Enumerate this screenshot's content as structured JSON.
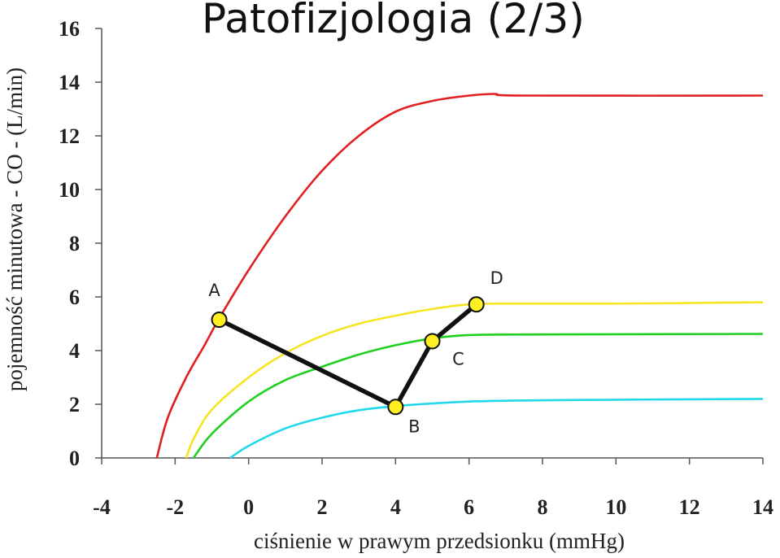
{
  "chart_data": {
    "type": "line",
    "title": "Patofizjologia (2/3)",
    "xlabel": "ciśnienie w prawym przedsionku (mmHg)",
    "ylabel": "pojemność minutowa - CO - (L/min)",
    "xlim": [
      -4,
      14
    ],
    "ylim": [
      0,
      16
    ],
    "x_ticks": [
      "-4",
      "-2",
      "0",
      "2",
      "4",
      "6",
      "8",
      "10",
      "12",
      "14"
    ],
    "y_ticks": [
      "0",
      "2",
      "4",
      "6",
      "8",
      "10",
      "12",
      "14",
      "16"
    ],
    "grid": false,
    "series": [
      {
        "color": "#e02020",
        "points": [
          [
            -2.5,
            0
          ],
          [
            -2.2,
            1.5
          ],
          [
            -1.7,
            3.0
          ],
          [
            -1.2,
            4.2
          ],
          [
            -0.8,
            5.2
          ],
          [
            0,
            7.0
          ],
          [
            1,
            9.0
          ],
          [
            2,
            10.7
          ],
          [
            3,
            12.0
          ],
          [
            4,
            12.9
          ],
          [
            5,
            13.3
          ],
          [
            6,
            13.5
          ],
          [
            6.7,
            13.56
          ],
          [
            7.5,
            13.5
          ],
          [
            14,
            13.5
          ]
        ]
      },
      {
        "color": "#f5e521",
        "points": [
          [
            -1.7,
            0
          ],
          [
            -1.5,
            0.7
          ],
          [
            -1,
            1.8
          ],
          [
            0,
            3.0
          ],
          [
            1,
            3.9
          ],
          [
            2,
            4.55
          ],
          [
            3,
            5.0
          ],
          [
            4,
            5.3
          ],
          [
            5,
            5.55
          ],
          [
            6,
            5.72
          ],
          [
            7,
            5.75
          ],
          [
            10,
            5.75
          ],
          [
            14,
            5.8
          ]
        ]
      },
      {
        "color": "#20d020",
        "points": [
          [
            -1.5,
            0
          ],
          [
            -1,
            0.9
          ],
          [
            0,
            2.1
          ],
          [
            1,
            2.9
          ],
          [
            2,
            3.4
          ],
          [
            3,
            3.85
          ],
          [
            4,
            4.2
          ],
          [
            5,
            4.45
          ],
          [
            6,
            4.58
          ],
          [
            8,
            4.6
          ],
          [
            14,
            4.62
          ]
        ]
      },
      {
        "color": "#20d8ec",
        "points": [
          [
            -0.5,
            0
          ],
          [
            0,
            0.45
          ],
          [
            1,
            1.1
          ],
          [
            2,
            1.5
          ],
          [
            3,
            1.78
          ],
          [
            4,
            1.93
          ],
          [
            5,
            2.03
          ],
          [
            6,
            2.1
          ],
          [
            8,
            2.15
          ],
          [
            10,
            2.17
          ],
          [
            14,
            2.2
          ]
        ]
      }
    ],
    "path": {
      "color": "#111111",
      "points": [
        {
          "label": "A",
          "x": -0.8,
          "y": 5.15
        },
        {
          "label": "B",
          "x": 4.0,
          "y": 1.9
        },
        {
          "label": "C",
          "x": 5.0,
          "y": 4.35
        },
        {
          "label": "D",
          "x": 6.2,
          "y": 5.72
        }
      ]
    },
    "marker_color": "#ffee22"
  }
}
